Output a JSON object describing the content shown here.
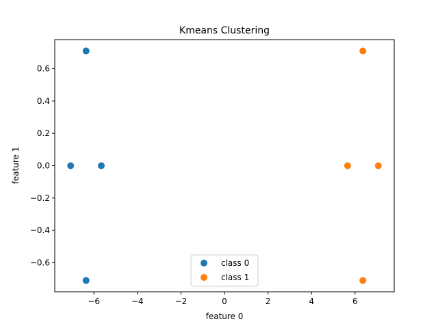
{
  "chart_data": {
    "type": "scatter",
    "title": "Kmeans Clustering",
    "xlabel": "feature 0",
    "ylabel": "feature 1",
    "xlim": [
      -7.8,
      7.8
    ],
    "ylim": [
      -0.78,
      0.78
    ],
    "xticks": [
      -6,
      -4,
      -2,
      0,
      2,
      4,
      6
    ],
    "yticks": [
      -0.6,
      -0.4,
      -0.2,
      0.0,
      0.2,
      0.4,
      0.6
    ],
    "xtick_labels": [
      "−6",
      "−4",
      "−2",
      "0",
      "2",
      "4",
      "6"
    ],
    "ytick_labels": [
      "−0.6",
      "−0.4",
      "−0.2",
      "0.0",
      "0.2",
      "0.4",
      "0.6"
    ],
    "grid": false,
    "legend_position": "lower center",
    "series": [
      {
        "name": "class 0",
        "color": "#1f77b4",
        "points": [
          {
            "x": -6.36,
            "y": 0.71
          },
          {
            "x": -7.07,
            "y": 0.0
          },
          {
            "x": -5.66,
            "y": 0.0
          },
          {
            "x": -6.36,
            "y": -0.71
          }
        ]
      },
      {
        "name": "class 1",
        "color": "#ff7f0e",
        "points": [
          {
            "x": 6.36,
            "y": 0.71
          },
          {
            "x": 5.66,
            "y": 0.0
          },
          {
            "x": 7.07,
            "y": 0.0
          },
          {
            "x": 6.36,
            "y": -0.71
          }
        ]
      }
    ]
  }
}
